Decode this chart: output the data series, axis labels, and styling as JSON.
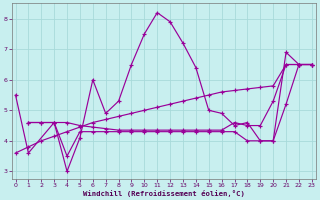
{
  "xlabel": "Windchill (Refroidissement éolien,°C)",
  "bg_color": "#c8efef",
  "grid_color": "#a8dada",
  "line_color": "#990099",
  "xlim_min": -0.3,
  "xlim_max": 23.3,
  "ylim_min": 2.75,
  "ylim_max": 8.5,
  "xticks": [
    0,
    1,
    2,
    3,
    4,
    5,
    6,
    7,
    8,
    9,
    10,
    11,
    12,
    13,
    14,
    15,
    16,
    17,
    18,
    19,
    20,
    21,
    22,
    23
  ],
  "yticks": [
    3,
    4,
    5,
    6,
    7,
    8
  ],
  "curves": [
    {
      "x": [
        0,
        1,
        3,
        4,
        5,
        6,
        7,
        8,
        9,
        10,
        11,
        12,
        13,
        14,
        15,
        16,
        17,
        18,
        19,
        20,
        21,
        22,
        23
      ],
      "y": [
        5.5,
        3.6,
        4.6,
        3.0,
        4.1,
        6.0,
        4.9,
        5.3,
        6.5,
        7.5,
        8.2,
        7.9,
        7.2,
        6.4,
        5.0,
        4.9,
        4.5,
        4.6,
        4.0,
        4.0,
        6.9,
        6.5,
        6.5
      ]
    },
    {
      "x": [
        1,
        2,
        3,
        4,
        5,
        6,
        7,
        8,
        9,
        10,
        11,
        12,
        13,
        14,
        15,
        16,
        17,
        18,
        19,
        20,
        21,
        22,
        23
      ],
      "y": [
        4.6,
        4.6,
        4.6,
        3.5,
        4.3,
        4.3,
        4.3,
        4.3,
        4.3,
        4.3,
        4.3,
        4.3,
        4.3,
        4.3,
        4.3,
        4.3,
        4.3,
        4.0,
        4.0,
        4.0,
        5.2,
        6.5,
        6.5
      ]
    },
    {
      "x": [
        0,
        1,
        2,
        3,
        4,
        5,
        6,
        7,
        8,
        9,
        10,
        11,
        12,
        13,
        14,
        15,
        16,
        17,
        18,
        19,
        20,
        21,
        22,
        23
      ],
      "y": [
        3.6,
        3.8,
        4.0,
        4.15,
        4.3,
        4.45,
        4.6,
        4.7,
        4.8,
        4.9,
        5.0,
        5.1,
        5.2,
        5.3,
        5.4,
        5.5,
        5.6,
        5.65,
        5.7,
        5.75,
        5.8,
        6.5,
        6.5,
        6.5
      ]
    },
    {
      "x": [
        1,
        2,
        3,
        4,
        5,
        6,
        7,
        8,
        9,
        10,
        11,
        12,
        13,
        14,
        15,
        16,
        17,
        18,
        19,
        20,
        21,
        22,
        23
      ],
      "y": [
        4.6,
        4.6,
        4.6,
        4.6,
        4.5,
        4.45,
        4.4,
        4.35,
        4.35,
        4.35,
        4.35,
        4.35,
        4.35,
        4.35,
        4.35,
        4.35,
        4.6,
        4.5,
        4.5,
        5.3,
        6.5,
        6.5,
        6.5
      ]
    }
  ]
}
